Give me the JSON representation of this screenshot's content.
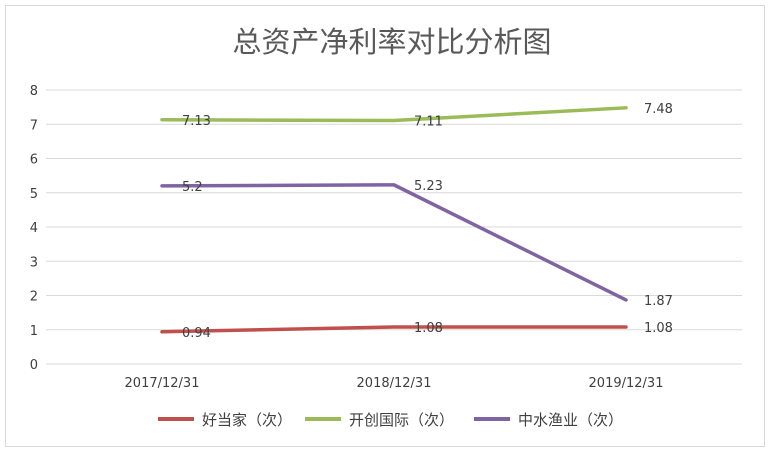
{
  "chart_data": {
    "type": "line",
    "title": "总资产净利率对比分析图",
    "categories": [
      "2017/12/31",
      "2018/12/31",
      "2019/12/31"
    ],
    "ylim": [
      0,
      8
    ],
    "yticks": [
      "0",
      "1",
      "2",
      "3",
      "4",
      "5",
      "6",
      "7",
      "8"
    ],
    "grid": true,
    "legend_position": "bottom",
    "series": [
      {
        "name": "好当家（次）",
        "values": [
          0.94,
          1.08,
          1.08
        ],
        "labels": [
          "0.94",
          "1.08",
          "1.08"
        ],
        "color": "#c0504d"
      },
      {
        "name": "开创国际（次）",
        "values": [
          7.13,
          7.11,
          7.48
        ],
        "labels": [
          "7.13",
          "7.11",
          "7.48"
        ],
        "color": "#9bbb59"
      },
      {
        "name": "中水渔业（次）",
        "values": [
          5.2,
          5.23,
          1.87
        ],
        "labels": [
          "5.2",
          "5.23",
          "1.87"
        ],
        "color": "#8064a2"
      }
    ]
  }
}
